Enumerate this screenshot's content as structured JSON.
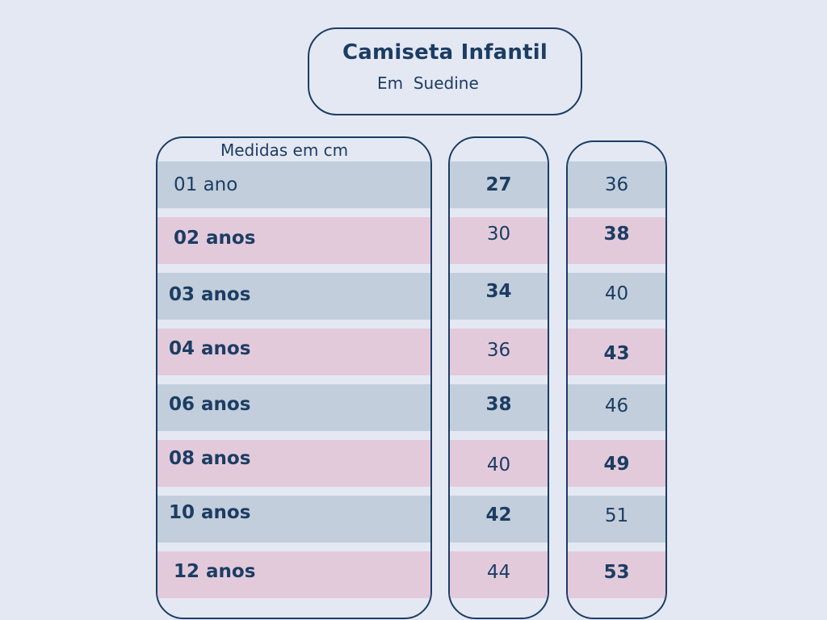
{
  "title": {
    "main": "Camiseta Infantil",
    "sub": "Em  Suedine"
  },
  "table": {
    "header": "Medidas em cm",
    "rows": [
      {
        "label": "01 ano",
        "col_a": "27",
        "col_b": "36"
      },
      {
        "label": "02 anos",
        "col_a": "30",
        "col_b": "38"
      },
      {
        "label": "03 anos",
        "col_a": "34",
        "col_b": "40"
      },
      {
        "label": "04 anos",
        "col_a": "36",
        "col_b": "43"
      },
      {
        "label": "06 anos",
        "col_a": "38",
        "col_b": "46"
      },
      {
        "label": "08 anos",
        "col_a": "40",
        "col_b": "49"
      },
      {
        "label": "10 anos",
        "col_a": "42",
        "col_b": "51"
      },
      {
        "label": "12 anos",
        "col_a": "44",
        "col_b": "53"
      }
    ]
  },
  "colors": {
    "background": "#e4e8f3",
    "text": "#1c3d63",
    "row_blue": "#c2cedb",
    "row_pink": "#e3cadb"
  }
}
